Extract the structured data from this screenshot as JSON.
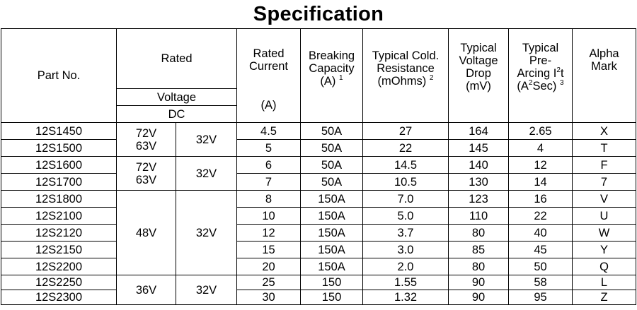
{
  "title": "Specification",
  "headers": {
    "part_no": "Part No.",
    "rated": "Rated",
    "voltage": "Voltage",
    "dc": "DC",
    "rated_current": "Rated\nCurrent",
    "rated_current_unit": "(A)",
    "breaking_capacity": "Breaking\nCapacity",
    "breaking_capacity_unit": "(A)",
    "breaking_capacity_note": "1",
    "cold_resistance": "Typical Cold.\nResistance",
    "cold_resistance_unit": "(mOhms)",
    "cold_resistance_note": "2",
    "voltage_drop": "Typical\nVoltage\nDrop\n(mV)",
    "i2t_a": "Typical\nPre-\nArcing I",
    "i2t_sup": "2",
    "i2t_b": "t",
    "i2t_unit_a": "(A",
    "i2t_unit_sup": "2",
    "i2t_unit_b": "Sec)",
    "i2t_note": "3",
    "alpha_mark": "Alpha\nMark"
  },
  "voltage_groups": [
    {
      "v1": "72V\n63V",
      "v2": "32V"
    },
    {
      "v1": "72V\n63V",
      "v2": "32V"
    },
    {
      "v1": "48V",
      "v2": "32V"
    },
    {
      "v1": "36V",
      "v2": "32V"
    }
  ],
  "rows": [
    {
      "part": "12S1450",
      "current": "4.5",
      "breaking": "50A",
      "resistance": "27",
      "drop": "164",
      "i2t": "2.65",
      "mark": "X"
    },
    {
      "part": "12S1500",
      "current": "5",
      "breaking": "50A",
      "resistance": "22",
      "drop": "145",
      "i2t": "4",
      "mark": "T"
    },
    {
      "part": "12S1600",
      "current": "6",
      "breaking": "50A",
      "resistance": "14.5",
      "drop": "140",
      "i2t": "12",
      "mark": "F"
    },
    {
      "part": "12S1700",
      "current": "7",
      "breaking": "50A",
      "resistance": "10.5",
      "drop": "130",
      "i2t": "14",
      "mark": "7"
    },
    {
      "part": "12S1800",
      "current": "8",
      "breaking": "150A",
      "resistance": "7.0",
      "drop": "123",
      "i2t": "16",
      "mark": "V"
    },
    {
      "part": "12S2100",
      "current": "10",
      "breaking": "150A",
      "resistance": "5.0",
      "drop": "110",
      "i2t": "22",
      "mark": "U"
    },
    {
      "part": "12S2120",
      "current": "12",
      "breaking": "150A",
      "resistance": "3.7",
      "drop": "80",
      "i2t": "40",
      "mark": "W"
    },
    {
      "part": "12S2150",
      "current": "15",
      "breaking": "150A",
      "resistance": "3.0",
      "drop": "85",
      "i2t": "45",
      "mark": "Y"
    },
    {
      "part": "12S2200",
      "current": "20",
      "breaking": "150A",
      "resistance": "2.0",
      "drop": "80",
      "i2t": "50",
      "mark": "Q"
    },
    {
      "part": "12S2250",
      "current": "25",
      "breaking": "150",
      "resistance": "1.55",
      "drop": "90",
      "i2t": "58",
      "mark": "L"
    },
    {
      "part": "12S2300",
      "current": "30",
      "breaking": "150",
      "resistance": "1.32",
      "drop": "90",
      "i2t": "95",
      "mark": "Z"
    }
  ]
}
